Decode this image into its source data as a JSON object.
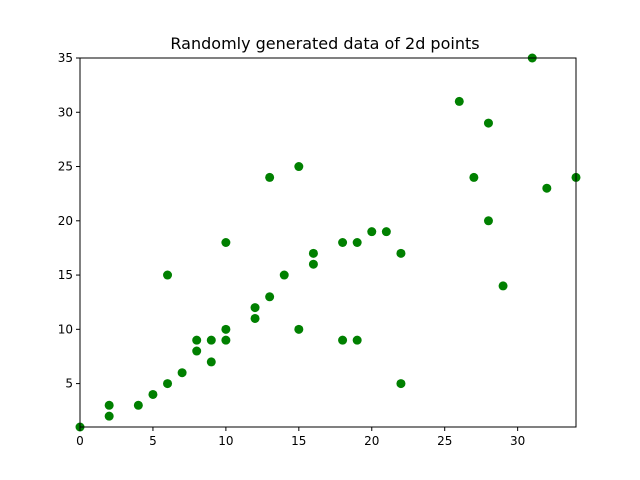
{
  "chart_data": {
    "type": "scatter",
    "title": "Randomly generated data of 2d points",
    "xlabel": "",
    "ylabel": "",
    "xlim": [
      0,
      34
    ],
    "ylim": [
      1,
      35
    ],
    "xticks": [
      0,
      5,
      10,
      15,
      20,
      25,
      30
    ],
    "yticks": [
      5,
      10,
      15,
      20,
      25,
      30,
      35
    ],
    "grid": false,
    "marker_color": "#008000",
    "points": [
      [
        0,
        1
      ],
      [
        2,
        3
      ],
      [
        2,
        2
      ],
      [
        4,
        3
      ],
      [
        5,
        4
      ],
      [
        6,
        5
      ],
      [
        6,
        15
      ],
      [
        7,
        6
      ],
      [
        8,
        8
      ],
      [
        8,
        9
      ],
      [
        9,
        9
      ],
      [
        9,
        7
      ],
      [
        10,
        10
      ],
      [
        10,
        9
      ],
      [
        10,
        18
      ],
      [
        12,
        12
      ],
      [
        12,
        11
      ],
      [
        13,
        13
      ],
      [
        13,
        24
      ],
      [
        14,
        15
      ],
      [
        15,
        10
      ],
      [
        15,
        25
      ],
      [
        16,
        17
      ],
      [
        16,
        16
      ],
      [
        18,
        18
      ],
      [
        18,
        9
      ],
      [
        19,
        18
      ],
      [
        19,
        9
      ],
      [
        20,
        19
      ],
      [
        21,
        19
      ],
      [
        22,
        17
      ],
      [
        22,
        5
      ],
      [
        26,
        31
      ],
      [
        27,
        24
      ],
      [
        28,
        29
      ],
      [
        28,
        20
      ],
      [
        29,
        14
      ],
      [
        31,
        35
      ],
      [
        32,
        23
      ],
      [
        34,
        24
      ]
    ]
  }
}
